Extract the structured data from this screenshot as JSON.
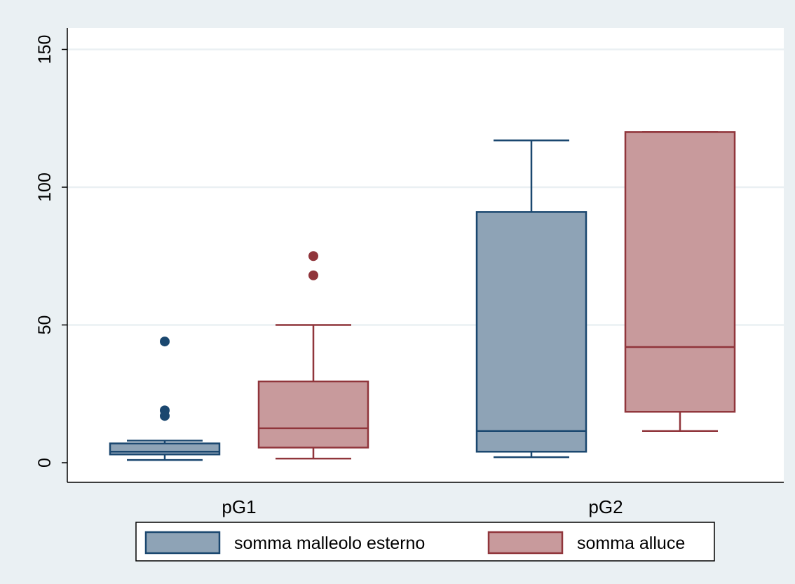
{
  "chart_data": {
    "type": "box",
    "categories": [
      "pG1",
      "pG2"
    ],
    "ylim": [
      0,
      160
    ],
    "yticks": [
      0,
      50,
      100,
      150
    ],
    "grid": true,
    "legend_position": "bottom",
    "series": [
      {
        "name": "somma malleolo esterno",
        "fill": "#8ea3b6",
        "stroke": "#1a476f",
        "boxes": [
          {
            "category": "pG1",
            "whisker_low": 1,
            "q1": 3,
            "median": 4,
            "q3": 7,
            "whisker_high": 8,
            "outliers": [
              44,
              19,
              17
            ]
          },
          {
            "category": "pG2",
            "whisker_low": 2,
            "q1": 4,
            "median": 11.5,
            "q3": 91,
            "whisker_high": 117,
            "outliers": []
          }
        ]
      },
      {
        "name": "somma alluce",
        "fill": "#c89a9c",
        "stroke": "#90353b",
        "boxes": [
          {
            "category": "pG1",
            "whisker_low": 1.5,
            "q1": 5.5,
            "median": 12.5,
            "q3": 29.5,
            "whisker_high": 50,
            "outliers": [
              75,
              68
            ]
          },
          {
            "category": "pG2",
            "whisker_low": 11.5,
            "q1": 18.5,
            "median": 42,
            "q3": 120,
            "whisker_high": 120,
            "outliers": []
          }
        ]
      }
    ]
  }
}
